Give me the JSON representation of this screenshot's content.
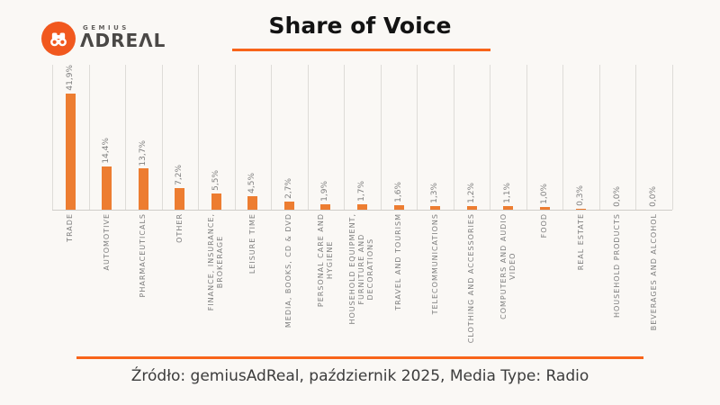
{
  "page": {
    "background_color": "#FAF8F5"
  },
  "logo": {
    "brand_top": "GEMIUS",
    "brand_bottom": "ΛDREΛL",
    "circle_color": "#F1581E"
  },
  "header": {
    "title": "Share of Voice",
    "underline_color": "#F8641A"
  },
  "footer": {
    "text": "Źródło: gemiusAdReal, październik 2025, Media Type: Radio",
    "line_color": "#F8641A"
  },
  "chart_data": {
    "type": "bar",
    "title": "Share of Voice",
    "unit": "percent",
    "categories": [
      "TRADE",
      "AUTOMOTIVE",
      "PHARMACEUTICALS",
      "OTHER",
      "FINANCE, INSURANCE,\nBROKERAGE",
      "LEISURE TIME",
      "MEDIA, BOOKS, CD & DVD",
      "PERSONAL CARE AND\nHYGIENE",
      "HOUSEHOLD EQUIPMENT,\nFURNITURE AND\nDECORATIONS",
      "TRAVEL AND TOURISM",
      "TELECOMMUNICATIONS",
      "CLOTHING AND ACCESSORIES",
      "COMPUTERS AND AUDIO\nVIDEO",
      "FOOD",
      "REAL ESTATE",
      "HOUSEHOLD PRODUCTS",
      "BEVERAGES AND ALCOHOL"
    ],
    "values": [
      41.9,
      14.4,
      13.7,
      7.2,
      5.5,
      4.5,
      2.7,
      1.9,
      1.7,
      1.6,
      1.3,
      1.2,
      1.1,
      1.0,
      0.3,
      0.0,
      0.0
    ],
    "value_labels": [
      "41,9%",
      "14,4%",
      "13,7%",
      "7,2%",
      "5,5%",
      "4,5%",
      "2,7%",
      "1,9%",
      "1,7%",
      "1,6%",
      "1,3%",
      "1,2%",
      "1,1%",
      "1,0%",
      "0,3%",
      "0,0%",
      "0,0%"
    ],
    "xlabel": "",
    "ylabel": "",
    "ylim": [
      0,
      48
    ],
    "y_axis_visible": false,
    "grid": "vertical-category-separators",
    "legend": "none",
    "label_rotation": -90,
    "bar_color": "#ED7D31",
    "gridline_color": "#DEDCD8",
    "text_color": "#7F7F7F"
  }
}
